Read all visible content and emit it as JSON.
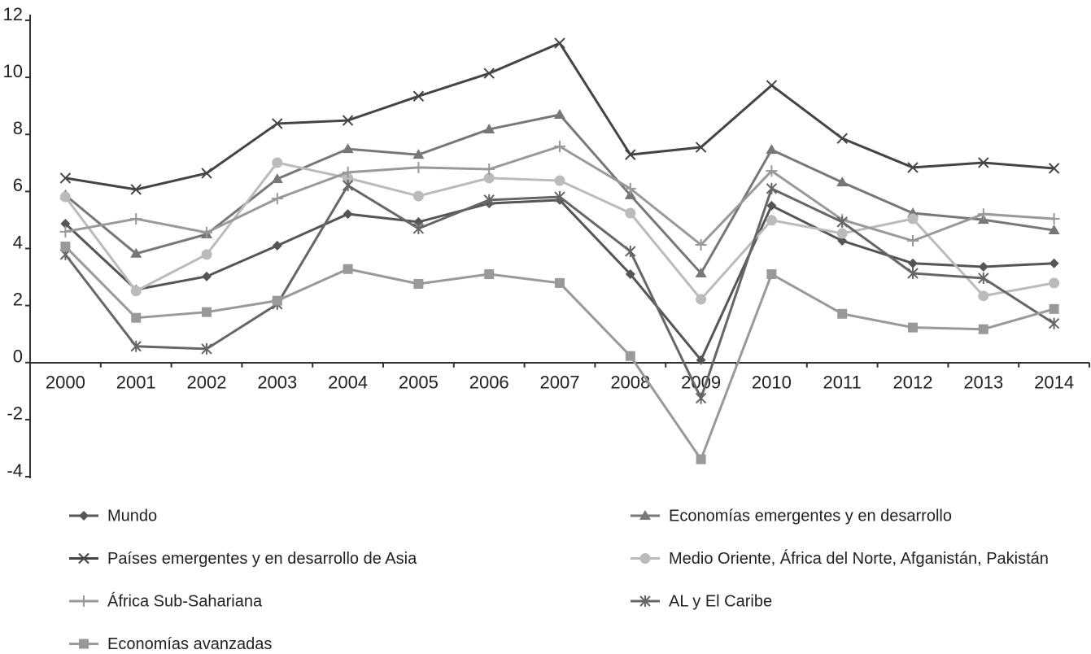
{
  "chart_data": {
    "type": "line",
    "categories": [
      "2000",
      "2001",
      "2002",
      "2003",
      "2004",
      "2005",
      "2006",
      "2007",
      "2008",
      "2009",
      "2010",
      "2011",
      "2012",
      "2013",
      "2014"
    ],
    "ylim": [
      -4,
      12
    ],
    "yticks": [
      -4,
      -2,
      0,
      2,
      4,
      6,
      8,
      10,
      12
    ],
    "series": [
      {
        "name": "Mundo",
        "color": "#555555",
        "marker": "diamond",
        "values": [
          4.87,
          2.56,
          3.02,
          4.1,
          5.21,
          4.93,
          5.58,
          5.7,
          3.1,
          0.09,
          5.5,
          4.27,
          3.48,
          3.36,
          3.48
        ]
      },
      {
        "name": "Economías emergentes y en desarrollo",
        "color": "#777777",
        "marker": "triangle",
        "values": [
          5.87,
          3.82,
          4.5,
          6.44,
          7.49,
          7.29,
          8.18,
          8.69,
          5.87,
          3.13,
          7.46,
          6.32,
          5.24,
          5.01,
          4.64
        ]
      },
      {
        "name": "Países emergentes y en desarrollo de Asia",
        "color": "#444444",
        "marker": "x",
        "values": [
          6.47,
          6.07,
          6.64,
          8.38,
          8.49,
          9.34,
          10.14,
          11.2,
          7.29,
          7.55,
          9.72,
          7.86,
          6.84,
          7.01,
          6.81
        ]
      },
      {
        "name": "Medio Oriente, África del Norte, Afganistán, Pakistán",
        "color": "#bbbbbb",
        "marker": "circle",
        "values": [
          5.81,
          2.51,
          3.79,
          7.01,
          6.47,
          5.84,
          6.47,
          6.38,
          5.24,
          2.22,
          4.99,
          4.53,
          5.04,
          2.34,
          2.79
        ]
      },
      {
        "name": "África Sub-Sahariana",
        "color": "#999999",
        "marker": "plus",
        "values": [
          4.59,
          5.04,
          4.56,
          5.75,
          6.67,
          6.84,
          6.78,
          7.58,
          6.1,
          4.13,
          6.72,
          5.01,
          4.27,
          5.21,
          5.04
        ]
      },
      {
        "name": "AL y El Caribe",
        "color": "#666666",
        "marker": "star",
        "values": [
          3.79,
          0.57,
          0.48,
          2.05,
          6.21,
          4.7,
          5.7,
          5.81,
          3.9,
          -1.25,
          6.1,
          4.93,
          3.13,
          2.96,
          1.37
        ]
      },
      {
        "name": "Economías avanzadas",
        "color": "#999999",
        "marker": "square",
        "values": [
          4.07,
          1.57,
          1.77,
          2.17,
          3.28,
          2.76,
          3.1,
          2.79,
          0.23,
          -3.39,
          3.1,
          1.71,
          1.23,
          1.17,
          1.88
        ]
      }
    ]
  }
}
